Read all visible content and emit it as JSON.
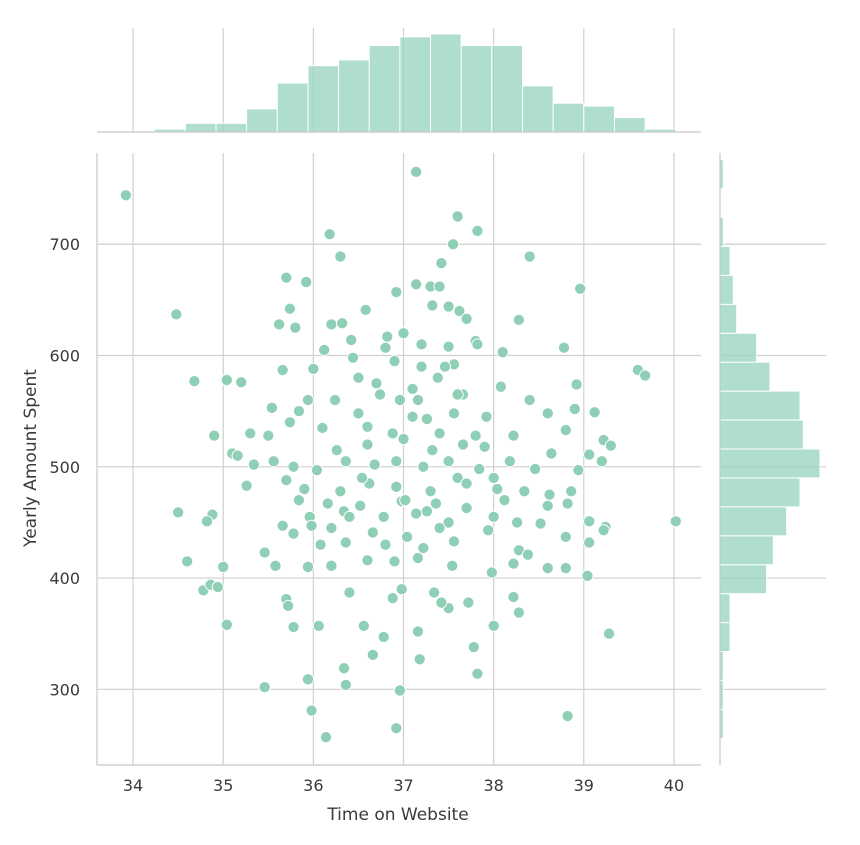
{
  "chart_data": {
    "type": "scatter",
    "title": "",
    "xlabel": "Time on Website",
    "ylabel": "Yearly Amount Spent",
    "xlim": [
      33.6,
      40.3
    ],
    "ylim": [
      232,
      782
    ],
    "xticks": [
      "34",
      "35",
      "36",
      "37",
      "38",
      "39",
      "40"
    ],
    "yticks": [
      "300",
      "400",
      "500",
      "600",
      "700"
    ],
    "grid": true,
    "color": "#8fcfb6",
    "hist_color": "#9bd6c0",
    "marginal_x_hist": {
      "bin_edges": [
        33.9,
        34.24,
        34.58,
        34.92,
        35.26,
        35.6,
        35.94,
        36.28,
        36.62,
        36.96,
        37.3,
        37.64,
        37.98,
        38.32,
        38.66,
        39.0,
        39.34,
        39.68,
        40.02
      ],
      "counts": [
        0,
        1,
        3,
        3,
        8,
        17,
        23,
        25,
        30,
        33,
        34,
        30,
        30,
        16,
        10,
        9,
        5,
        1
      ]
    },
    "marginal_y_hist": {
      "bin_edges": [
        256,
        282,
        308,
        334,
        360,
        386,
        412,
        438,
        464,
        490,
        516,
        542,
        568,
        594,
        620,
        646,
        672,
        698,
        724,
        750,
        776
      ],
      "counts": [
        1,
        1,
        1,
        3,
        3,
        14,
        16,
        20,
        24,
        30,
        25,
        24,
        15,
        11,
        5,
        4,
        3,
        1,
        0,
        1
      ]
    },
    "points": [
      [
        33.92,
        744
      ],
      [
        37.14,
        765
      ],
      [
        37.6,
        725
      ],
      [
        37.82,
        712
      ],
      [
        36.18,
        709
      ],
      [
        37.55,
        700
      ],
      [
        38.4,
        689
      ],
      [
        36.3,
        689
      ],
      [
        37.42,
        683
      ],
      [
        35.7,
        670
      ],
      [
        35.92,
        666
      ],
      [
        37.14,
        664
      ],
      [
        37.3,
        662
      ],
      [
        37.4,
        662
      ],
      [
        36.92,
        657
      ],
      [
        38.96,
        660
      ],
      [
        37.32,
        645
      ],
      [
        37.5,
        644
      ],
      [
        35.74,
        642
      ],
      [
        36.58,
        641
      ],
      [
        37.62,
        640
      ],
      [
        34.48,
        637
      ],
      [
        37.7,
        633
      ],
      [
        38.28,
        632
      ],
      [
        35.62,
        628
      ],
      [
        35.8,
        625
      ],
      [
        36.2,
        628
      ],
      [
        36.32,
        629
      ],
      [
        37.0,
        620
      ],
      [
        36.82,
        617
      ],
      [
        36.42,
        614
      ],
      [
        37.2,
        610
      ],
      [
        37.5,
        608
      ],
      [
        37.8,
        613
      ],
      [
        36.12,
        605
      ],
      [
        36.8,
        607
      ],
      [
        37.82,
        610
      ],
      [
        38.1,
        603
      ],
      [
        38.78,
        607
      ],
      [
        36.44,
        598
      ],
      [
        36.9,
        595
      ],
      [
        37.2,
        590
      ],
      [
        37.56,
        592
      ],
      [
        37.38,
        580
      ],
      [
        36.0,
        588
      ],
      [
        35.66,
        587
      ],
      [
        35.2,
        576
      ],
      [
        36.5,
        580
      ],
      [
        36.7,
        575
      ],
      [
        37.1,
        570
      ],
      [
        34.68,
        577
      ],
      [
        35.04,
        578
      ],
      [
        39.6,
        587
      ],
      [
        39.68,
        582
      ],
      [
        38.92,
        574
      ],
      [
        35.94,
        560
      ],
      [
        36.24,
        560
      ],
      [
        36.74,
        565
      ],
      [
        37.16,
        560
      ],
      [
        37.66,
        565
      ],
      [
        38.08,
        572
      ],
      [
        38.4,
        560
      ],
      [
        35.54,
        553
      ],
      [
        35.84,
        550
      ],
      [
        36.5,
        548
      ],
      [
        37.26,
        543
      ],
      [
        37.56,
        548
      ],
      [
        37.92,
        545
      ],
      [
        38.6,
        548
      ],
      [
        38.9,
        552
      ],
      [
        39.12,
        549
      ],
      [
        35.74,
        540
      ],
      [
        36.1,
        535
      ],
      [
        36.88,
        530
      ],
      [
        37.4,
        530
      ],
      [
        38.22,
        528
      ],
      [
        38.8,
        533
      ],
      [
        35.3,
        530
      ],
      [
        35.5,
        528
      ],
      [
        34.9,
        528
      ],
      [
        36.6,
        520
      ],
      [
        37.0,
        525
      ],
      [
        37.9,
        518
      ],
      [
        38.64,
        512
      ],
      [
        39.22,
        524
      ],
      [
        39.3,
        519
      ],
      [
        35.1,
        512
      ],
      [
        35.16,
        510
      ],
      [
        35.34,
        502
      ],
      [
        35.56,
        505
      ],
      [
        35.78,
        500
      ],
      [
        36.04,
        497
      ],
      [
        36.36,
        505
      ],
      [
        36.68,
        502
      ],
      [
        37.22,
        500
      ],
      [
        37.5,
        505
      ],
      [
        37.84,
        498
      ],
      [
        38.18,
        505
      ],
      [
        38.46,
        498
      ],
      [
        38.94,
        497
      ],
      [
        39.06,
        511
      ],
      [
        39.2,
        505
      ],
      [
        35.26,
        483
      ],
      [
        35.7,
        488
      ],
      [
        35.9,
        480
      ],
      [
        36.3,
        478
      ],
      [
        36.62,
        485
      ],
      [
        36.92,
        482
      ],
      [
        37.3,
        478
      ],
      [
        37.6,
        490
      ],
      [
        38.04,
        480
      ],
      [
        38.34,
        478
      ],
      [
        38.62,
        475
      ],
      [
        38.86,
        478
      ],
      [
        35.84,
        470
      ],
      [
        36.16,
        467
      ],
      [
        36.52,
        465
      ],
      [
        36.98,
        469
      ],
      [
        37.36,
        467
      ],
      [
        37.7,
        463
      ],
      [
        38.12,
        470
      ],
      [
        38.82,
        467
      ],
      [
        34.5,
        459
      ],
      [
        34.88,
        457
      ],
      [
        35.96,
        455
      ],
      [
        36.34,
        460
      ],
      [
        36.78,
        455
      ],
      [
        37.14,
        458
      ],
      [
        37.5,
        450
      ],
      [
        38.0,
        455
      ],
      [
        38.6,
        465
      ],
      [
        34.82,
        451
      ],
      [
        35.98,
        447
      ],
      [
        36.2,
        445
      ],
      [
        36.66,
        441
      ],
      [
        37.04,
        437
      ],
      [
        37.4,
        445
      ],
      [
        37.94,
        443
      ],
      [
        38.52,
        449
      ],
      [
        39.06,
        451
      ],
      [
        39.24,
        446
      ],
      [
        40.02,
        451
      ],
      [
        35.66,
        447
      ],
      [
        35.78,
        440
      ],
      [
        36.08,
        430
      ],
      [
        36.36,
        432
      ],
      [
        36.8,
        430
      ],
      [
        37.22,
        427
      ],
      [
        37.56,
        433
      ],
      [
        38.28,
        425
      ],
      [
        38.38,
        421
      ],
      [
        38.8,
        437
      ],
      [
        39.06,
        432
      ],
      [
        39.22,
        443
      ],
      [
        35.46,
        423
      ],
      [
        35.58,
        411
      ],
      [
        35.94,
        410
      ],
      [
        36.2,
        411
      ],
      [
        36.6,
        416
      ],
      [
        36.9,
        415
      ],
      [
        37.16,
        418
      ],
      [
        37.54,
        411
      ],
      [
        37.98,
        405
      ],
      [
        38.22,
        413
      ],
      [
        38.6,
        409
      ],
      [
        38.8,
        409
      ],
      [
        34.6,
        415
      ],
      [
        35.0,
        410
      ],
      [
        34.78,
        389
      ],
      [
        34.86,
        394
      ],
      [
        34.94,
        392
      ],
      [
        35.7,
        381
      ],
      [
        35.72,
        375
      ],
      [
        36.4,
        387
      ],
      [
        36.98,
        390
      ],
      [
        37.34,
        387
      ],
      [
        37.5,
        373
      ],
      [
        37.42,
        378
      ],
      [
        38.22,
        383
      ],
      [
        38.28,
        369
      ],
      [
        39.04,
        402
      ],
      [
        37.72,
        378
      ],
      [
        36.88,
        382
      ],
      [
        37.78,
        338
      ],
      [
        37.82,
        314
      ],
      [
        36.96,
        299
      ],
      [
        36.92,
        265
      ],
      [
        36.14,
        257
      ],
      [
        35.98,
        281
      ],
      [
        35.46,
        302
      ],
      [
        35.94,
        309
      ],
      [
        36.36,
        304
      ],
      [
        36.34,
        319
      ],
      [
        35.78,
        356
      ],
      [
        36.06,
        357
      ],
      [
        35.04,
        358
      ],
      [
        36.56,
        357
      ],
      [
        36.66,
        331
      ],
      [
        36.78,
        347
      ],
      [
        37.16,
        352
      ],
      [
        37.18,
        327
      ],
      [
        38.0,
        357
      ],
      [
        38.82,
        276
      ],
      [
        39.28,
        350
      ],
      [
        37.6,
        565
      ],
      [
        37.1,
        545
      ],
      [
        36.92,
        505
      ],
      [
        37.32,
        515
      ],
      [
        36.6,
        536
      ],
      [
        37.7,
        485
      ],
      [
        36.4,
        455
      ],
      [
        37.02,
        470
      ],
      [
        37.8,
        528
      ],
      [
        38.26,
        450
      ],
      [
        36.54,
        490
      ],
      [
        36.96,
        560
      ],
      [
        37.46,
        590
      ],
      [
        38.0,
        490
      ],
      [
        36.26,
        515
      ],
      [
        37.26,
        460
      ],
      [
        37.66,
        520
      ]
    ]
  }
}
